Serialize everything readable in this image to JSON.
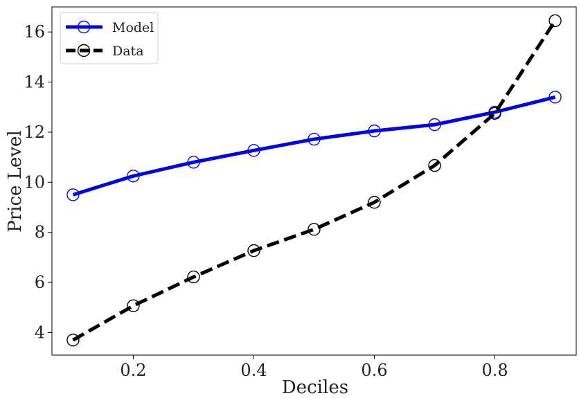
{
  "chart_data": {
    "type": "line",
    "title": "",
    "xlabel": "Deciles",
    "ylabel": "Price Level",
    "xlim": [
      0.065,
      0.935
    ],
    "ylim": [
      3.1,
      17.0
    ],
    "x_ticks": [
      "0.2",
      "0.4",
      "0.6",
      "0.8"
    ],
    "y_ticks": [
      "4",
      "6",
      "8",
      "10",
      "12",
      "14",
      "16"
    ],
    "grid": false,
    "legend_position": "top-left",
    "x": [
      0.1,
      0.2,
      0.3,
      0.4,
      0.5,
      0.6,
      0.7,
      0.8,
      0.9
    ],
    "series": [
      {
        "name": "Model",
        "color": "#0000ee",
        "line_style": "solid",
        "marker": "open-circle",
        "values": [
          9.5,
          10.25,
          10.8,
          11.27,
          11.72,
          12.05,
          12.3,
          12.8,
          13.4
        ]
      },
      {
        "name": "Data",
        "color": "#000000",
        "line_style": "dashed",
        "marker": "open-circle",
        "values": [
          3.7,
          5.07,
          6.22,
          7.27,
          8.12,
          9.2,
          10.67,
          12.75,
          16.45
        ]
      }
    ]
  }
}
